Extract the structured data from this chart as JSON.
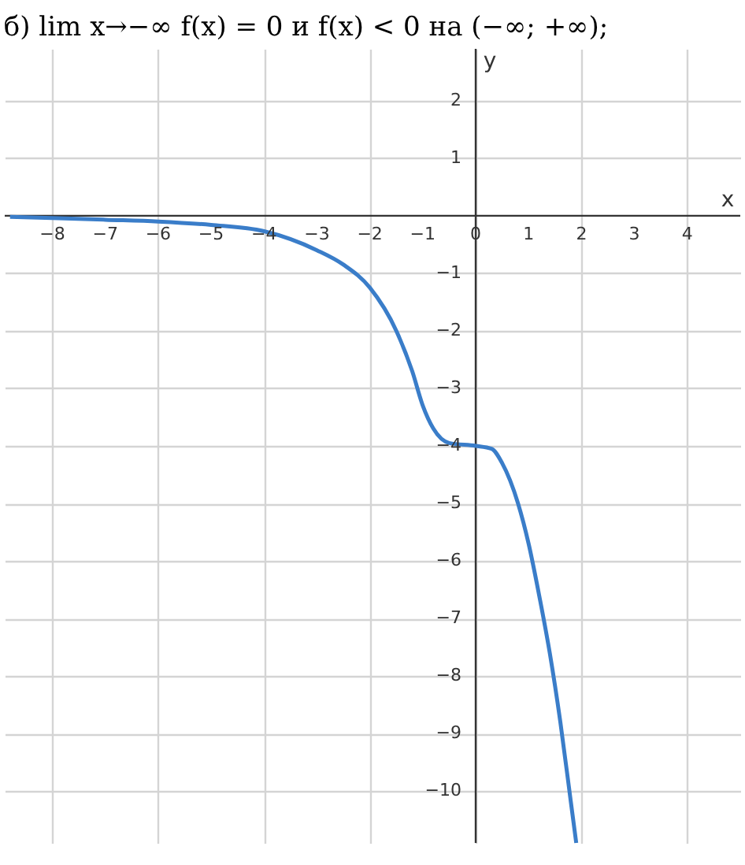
{
  "chart_data": {
    "type": "line",
    "title": "б) lim x→−∞ f(x) = 0 и f(x) < 0 на (−∞; +∞);",
    "xlabel": "x",
    "ylabel": "y",
    "x": [
      -8.8,
      -8,
      -7,
      -6,
      -5,
      -4,
      -3,
      -2.5,
      -2,
      -1.5,
      -1.2,
      -1,
      -0.8,
      -0.5,
      0,
      0.3,
      0.5,
      0.8,
      1,
      1.2,
      1.4,
      1.6,
      1.8,
      1.9
    ],
    "series": [
      {
        "color": "#3a7dc9",
        "values": [
          -0.02,
          -0.04,
          -0.07,
          -0.1,
          -0.16,
          -0.27,
          -0.6,
          -0.85,
          -1.25,
          -2.0,
          -2.7,
          -3.3,
          -3.7,
          -3.95,
          -4.0,
          -4.05,
          -4.3,
          -5.0,
          -5.7,
          -6.6,
          -7.6,
          -8.8,
          -10.2,
          -10.9
        ]
      }
    ],
    "xlim": [
      -8.9,
      5
    ],
    "ylim": [
      -10.9,
      2.9
    ],
    "xticks": [
      -8,
      -7,
      -6,
      -5,
      -4,
      -3,
      -2,
      -1,
      0,
      1,
      2,
      3,
      4
    ],
    "yticks": [
      2,
      1,
      -1,
      -2,
      -3,
      -4,
      -5,
      -6,
      -7,
      -8,
      -9,
      -10
    ],
    "grid": true,
    "marker": "none",
    "line_style": "solid"
  }
}
